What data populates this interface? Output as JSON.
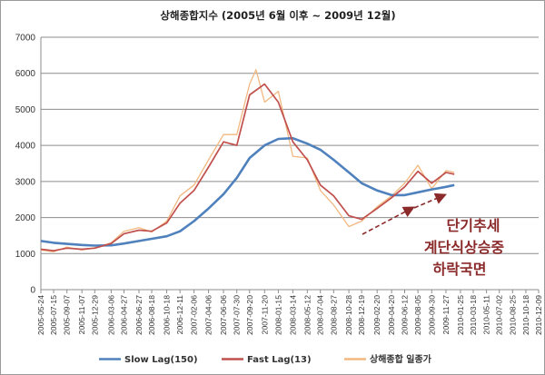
{
  "chart_data": {
    "type": "line",
    "title": "상해종합지수 (2005년 6월 이후 ~ 2009년 12월)",
    "ylim": [
      0,
      7000
    ],
    "yticks": [
      0,
      1000,
      2000,
      3000,
      4000,
      5000,
      6000,
      7000
    ],
    "xlim": [
      "2005-05-24",
      "2010-12-09"
    ],
    "xticks": [
      "2005-05-24",
      "2005-07-15",
      "2005-09-07",
      "2005-11-07",
      "2005-12-29",
      "2006-03-06",
      "2006-04-27",
      "2006-06-27",
      "2006-08-18",
      "2006-10-18",
      "2006-12-11",
      "2007-02-06",
      "2007-04-06",
      "2007-06-06",
      "2007-07-30",
      "2007-09-20",
      "2007-11-20",
      "2008-01-15",
      "2008-03-14",
      "2008-05-12",
      "2008-07-04",
      "2008-08-27",
      "2008-10-28",
      "2008-12-19",
      "2009-02-20",
      "2009-04-20",
      "2009-06-12",
      "2009-08-05",
      "2009-09-30",
      "2009-11-27",
      "2010-01-25",
      "2010-03-18",
      "2010-05-11",
      "2010-07-02",
      "2010-08-25",
      "2010-10-18",
      "2010-12-09"
    ],
    "grid": "horizontal",
    "legend_position": "bottom",
    "series": [
      {
        "name": "Slow Lag(150)",
        "color": "#4f81bd",
        "points": [
          [
            "2005-05-24",
            1350
          ],
          [
            "2005-07-15",
            1300
          ],
          [
            "2005-09-07",
            1270
          ],
          [
            "2005-11-07",
            1240
          ],
          [
            "2005-12-29",
            1220
          ],
          [
            "2006-03-06",
            1230
          ],
          [
            "2006-04-27",
            1280
          ],
          [
            "2006-06-27",
            1350
          ],
          [
            "2006-08-18",
            1410
          ],
          [
            "2006-10-18",
            1480
          ],
          [
            "2006-12-11",
            1620
          ],
          [
            "2007-02-06",
            1900
          ],
          [
            "2007-04-06",
            2250
          ],
          [
            "2007-06-06",
            2650
          ],
          [
            "2007-07-30",
            3100
          ],
          [
            "2007-09-20",
            3650
          ],
          [
            "2007-11-20",
            4000
          ],
          [
            "2008-01-15",
            4180
          ],
          [
            "2008-03-14",
            4200
          ],
          [
            "2008-05-12",
            4050
          ],
          [
            "2008-07-04",
            3880
          ],
          [
            "2008-08-27",
            3600
          ],
          [
            "2008-10-28",
            3250
          ],
          [
            "2008-12-19",
            2950
          ],
          [
            "2009-02-20",
            2750
          ],
          [
            "2009-04-20",
            2620
          ],
          [
            "2009-06-12",
            2620
          ],
          [
            "2009-08-05",
            2700
          ],
          [
            "2009-09-30",
            2780
          ],
          [
            "2009-11-27",
            2850
          ],
          [
            "2009-12-31",
            2900
          ]
        ]
      },
      {
        "name": "Fast Lag(13)",
        "color": "#c0504d",
        "points": [
          [
            "2005-05-24",
            1120
          ],
          [
            "2005-07-15",
            1080
          ],
          [
            "2005-09-07",
            1150
          ],
          [
            "2005-11-07",
            1120
          ],
          [
            "2005-12-29",
            1150
          ],
          [
            "2006-03-06",
            1280
          ],
          [
            "2006-04-27",
            1550
          ],
          [
            "2006-06-27",
            1650
          ],
          [
            "2006-08-18",
            1620
          ],
          [
            "2006-10-18",
            1850
          ],
          [
            "2006-12-11",
            2400
          ],
          [
            "2007-02-06",
            2750
          ],
          [
            "2007-04-06",
            3400
          ],
          [
            "2007-06-06",
            4100
          ],
          [
            "2007-07-30",
            4000
          ],
          [
            "2007-09-20",
            5400
          ],
          [
            "2007-11-20",
            5700
          ],
          [
            "2008-01-15",
            5200
          ],
          [
            "2008-03-14",
            4100
          ],
          [
            "2008-05-12",
            3600
          ],
          [
            "2008-07-04",
            2900
          ],
          [
            "2008-08-27",
            2600
          ],
          [
            "2008-10-28",
            2050
          ],
          [
            "2008-12-19",
            1950
          ],
          [
            "2009-02-20",
            2250
          ],
          [
            "2009-04-20",
            2550
          ],
          [
            "2009-06-12",
            2850
          ],
          [
            "2009-08-05",
            3280
          ],
          [
            "2009-09-30",
            2950
          ],
          [
            "2009-11-27",
            3250
          ],
          [
            "2009-12-31",
            3200
          ]
        ]
      },
      {
        "name": "상해종합 일종가",
        "color": "#f2b880",
        "points": [
          [
            "2005-05-24",
            1100
          ],
          [
            "2005-07-15",
            1050
          ],
          [
            "2005-09-07",
            1180
          ],
          [
            "2005-11-07",
            1100
          ],
          [
            "2005-12-29",
            1160
          ],
          [
            "2006-03-06",
            1300
          ],
          [
            "2006-04-27",
            1620
          ],
          [
            "2006-06-27",
            1720
          ],
          [
            "2006-08-18",
            1600
          ],
          [
            "2006-10-18",
            1900
          ],
          [
            "2006-12-11",
            2600
          ],
          [
            "2007-02-06",
            2900
          ],
          [
            "2007-04-06",
            3600
          ],
          [
            "2007-06-06",
            4300
          ],
          [
            "2007-07-30",
            4300
          ],
          [
            "2007-09-20",
            5700
          ],
          [
            "2007-10-16",
            6100
          ],
          [
            "2007-11-20",
            5200
          ],
          [
            "2008-01-15",
            5500
          ],
          [
            "2008-03-14",
            3700
          ],
          [
            "2008-05-12",
            3650
          ],
          [
            "2008-07-04",
            2750
          ],
          [
            "2008-08-27",
            2350
          ],
          [
            "2008-10-28",
            1750
          ],
          [
            "2008-12-19",
            1900
          ],
          [
            "2009-02-20",
            2300
          ],
          [
            "2009-04-20",
            2600
          ],
          [
            "2009-06-12",
            2950
          ],
          [
            "2009-08-05",
            3450
          ],
          [
            "2009-09-30",
            2800
          ],
          [
            "2009-11-27",
            3300
          ],
          [
            "2009-12-31",
            3250
          ]
        ]
      }
    ],
    "annotations": [
      "단기추세",
      "계단식상승중",
      "하락국면"
    ]
  }
}
